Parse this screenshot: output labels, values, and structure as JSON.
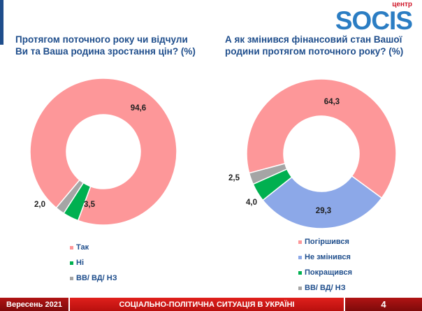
{
  "logo": {
    "small": "центр",
    "big": "SOCIS"
  },
  "chart_data": [
    {
      "type": "pie",
      "title": "Протягом поточного року чи відчули Ви та Ваша родина зростання цін? (%)",
      "categories": [
        "Так",
        "Ні",
        "ВВ/ ВД/ НЗ"
      ],
      "values": [
        94.6,
        3.5,
        2.0
      ],
      "labels": [
        "94,6",
        "3,5",
        "2,0"
      ],
      "colors": [
        "#fd9799",
        "#00b050",
        "#a5a5a5"
      ],
      "legend": "bottom"
    },
    {
      "type": "pie",
      "title": "А як змінився фінансовий стан Вашої родини протягом поточного року? (%)",
      "categories": [
        "Погіршився",
        "Не змінився",
        "Покращився",
        "ВВ/ ВД/ НЗ"
      ],
      "values": [
        64.3,
        29.3,
        4.0,
        2.5
      ],
      "labels": [
        "64,3",
        "29,3",
        "4,0",
        "2,5"
      ],
      "colors": [
        "#fd9799",
        "#8ca8e8",
        "#00b050",
        "#a5a5a5"
      ],
      "legend": "bottom"
    }
  ],
  "footer": {
    "date": "Вересень 2021",
    "title": "СОЦІАЛЬНО-ПОЛІТИЧНА СИТУАЦІЯ В УКРАЇНІ",
    "page": "4"
  }
}
